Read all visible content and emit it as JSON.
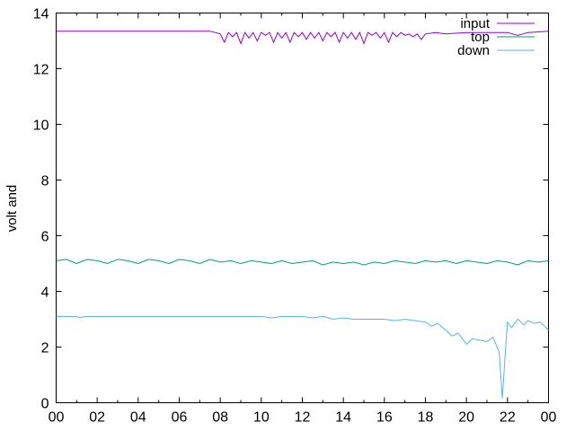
{
  "chart_data": {
    "type": "line",
    "title": "",
    "xlabel": "",
    "ylabel": "volt and",
    "xlim": [
      0,
      24
    ],
    "ylim": [
      0,
      14
    ],
    "x_ticks": [
      "00",
      "02",
      "04",
      "06",
      "08",
      "10",
      "12",
      "14",
      "16",
      "18",
      "20",
      "22",
      "00"
    ],
    "y_ticks": [
      0,
      2,
      4,
      6,
      8,
      10,
      12,
      14
    ],
    "grid": false,
    "legend_position": "top-right",
    "series": [
      {
        "name": "input",
        "color": "#9400d3",
        "x": [
          0,
          2,
          4,
          6,
          7.5,
          8,
          8.2,
          8.4,
          8.6,
          8.8,
          9.0,
          9.2,
          9.4,
          9.6,
          9.8,
          10.0,
          10.2,
          10.4,
          10.6,
          10.8,
          11.0,
          11.2,
          11.4,
          11.6,
          11.8,
          12.0,
          12.2,
          12.4,
          12.6,
          12.8,
          13.0,
          13.2,
          13.4,
          13.6,
          13.8,
          14.0,
          14.2,
          14.4,
          14.6,
          14.8,
          15.0,
          15.2,
          15.4,
          15.6,
          15.8,
          16.0,
          16.2,
          16.4,
          16.6,
          16.8,
          17.0,
          17.2,
          17.4,
          17.6,
          17.8,
          18.0,
          18.5,
          19,
          20,
          21,
          22,
          22.5,
          23,
          24
        ],
        "y": [
          13.35,
          13.35,
          13.35,
          13.35,
          13.35,
          13.25,
          12.95,
          13.3,
          13.15,
          13.3,
          12.9,
          13.3,
          13.1,
          13.3,
          13.0,
          13.3,
          13.2,
          13.3,
          12.95,
          13.3,
          13.1,
          13.3,
          12.95,
          13.3,
          13.15,
          13.3,
          13.05,
          13.3,
          13.1,
          13.3,
          13.0,
          13.3,
          13.15,
          13.3,
          12.95,
          13.3,
          13.1,
          13.3,
          13.05,
          13.3,
          12.9,
          13.3,
          13.2,
          13.3,
          13.1,
          13.3,
          12.95,
          13.3,
          13.15,
          13.3,
          13.2,
          13.25,
          13.15,
          13.25,
          13.05,
          13.25,
          13.3,
          13.25,
          13.3,
          13.3,
          13.3,
          13.2,
          13.3,
          13.35
        ]
      },
      {
        "name": "top",
        "color": "#009e73",
        "x": [
          0,
          0.5,
          1,
          1.5,
          2,
          2.5,
          3,
          3.5,
          4,
          4.5,
          5,
          5.5,
          6,
          6.5,
          7,
          7.5,
          8,
          8.5,
          9,
          9.5,
          10,
          10.5,
          11,
          11.5,
          12,
          12.5,
          13,
          13.5,
          14,
          14.5,
          15,
          15.5,
          16,
          16.5,
          17,
          17.5,
          18,
          18.5,
          19,
          19.5,
          20,
          20.5,
          21,
          21.5,
          22,
          22.5,
          23,
          23.5,
          24
        ],
        "y": [
          5.1,
          5.15,
          5.0,
          5.15,
          5.1,
          5.0,
          5.15,
          5.1,
          5.0,
          5.15,
          5.1,
          5.0,
          5.15,
          5.1,
          5.0,
          5.15,
          5.05,
          5.1,
          5.0,
          5.1,
          5.05,
          5.0,
          5.1,
          5.0,
          5.05,
          5.1,
          4.95,
          5.05,
          5.0,
          5.05,
          4.95,
          5.05,
          5.0,
          5.1,
          5.05,
          5.0,
          5.1,
          5.05,
          5.1,
          5.0,
          5.1,
          5.05,
          5.0,
          5.1,
          5.05,
          4.95,
          5.1,
          5.05,
          5.1
        ]
      },
      {
        "name": "down",
        "color": "#56b4e9",
        "x": [
          0,
          1,
          1.2,
          1.4,
          2,
          4,
          6,
          8,
          10,
          10.5,
          11,
          12,
          12.5,
          13,
          13.5,
          14,
          14.5,
          15,
          15.5,
          16,
          16.5,
          17,
          17.5,
          18,
          18.3,
          18.6,
          19,
          19.3,
          19.6,
          20,
          20.3,
          20.6,
          21,
          21.3,
          21.6,
          21.75,
          21.85,
          22,
          22.2,
          22.5,
          22.8,
          23,
          23.3,
          23.6,
          24
        ],
        "y": [
          3.1,
          3.1,
          3.05,
          3.1,
          3.1,
          3.1,
          3.1,
          3.1,
          3.1,
          3.05,
          3.1,
          3.1,
          3.05,
          3.1,
          3.0,
          3.05,
          3.0,
          3.0,
          3.0,
          3.0,
          2.95,
          3.0,
          2.95,
          2.9,
          2.75,
          2.85,
          2.6,
          2.4,
          2.5,
          2.1,
          2.3,
          2.25,
          2.2,
          2.35,
          1.8,
          0.15,
          1.3,
          2.9,
          2.7,
          3.0,
          2.8,
          2.95,
          2.85,
          2.9,
          2.6
        ]
      }
    ]
  }
}
